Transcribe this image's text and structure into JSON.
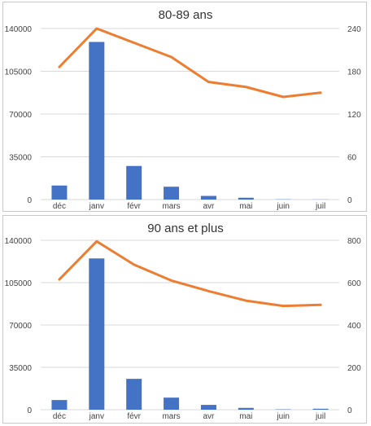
{
  "colors": {
    "bars": "#4472C4",
    "line": "#ED7D31",
    "grid": "#d9d9d9",
    "border": "#c8c8c8"
  },
  "chart_data": [
    {
      "type": "bar+line",
      "title": "80-89 ans",
      "categories": [
        "déc",
        "janv",
        "févr",
        "mars",
        "avr",
        "mai",
        "juin",
        "juil"
      ],
      "series": [
        {
          "type": "bar",
          "axis": "left",
          "values": [
            11500,
            129000,
            27500,
            10500,
            3000,
            1500,
            200,
            100
          ]
        },
        {
          "type": "line",
          "axis": "right",
          "values": [
            186,
            240,
            220,
            200,
            165,
            158,
            144,
            150
          ]
        }
      ],
      "left_axis": {
        "ticks": [
          "0",
          "35000",
          "70000",
          "105000",
          "140000"
        ],
        "ylim": [
          0,
          140000
        ]
      },
      "right_axis": {
        "ticks": [
          "0",
          "60",
          "120",
          "180",
          "240"
        ],
        "ylim": [
          0,
          240
        ]
      },
      "grid": true,
      "legend": "none"
    },
    {
      "type": "bar+line",
      "title": "90 ans et plus",
      "categories": [
        "déc",
        "janv",
        "févr",
        "mars",
        "avr",
        "mai",
        "juin",
        "juil"
      ],
      "series": [
        {
          "type": "bar",
          "axis": "left",
          "values": [
            8000,
            125000,
            25500,
            10000,
            4000,
            1500,
            300,
            800
          ]
        },
        {
          "type": "line",
          "axis": "right",
          "values": [
            615,
            795,
            685,
            610,
            560,
            515,
            490,
            495
          ]
        }
      ],
      "left_axis": {
        "ticks": [
          "0",
          "35000",
          "70000",
          "105000",
          "140000"
        ],
        "ylim": [
          0,
          140000
        ]
      },
      "right_axis": {
        "ticks": [
          "0",
          "200",
          "400",
          "600",
          "800"
        ],
        "ylim": [
          0,
          800
        ]
      },
      "grid": true,
      "legend": "none"
    }
  ]
}
